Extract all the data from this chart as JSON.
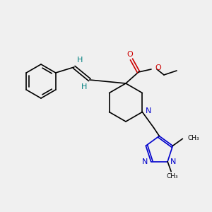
{
  "bg_color": "#f0f0f0",
  "bond_color": "#000000",
  "N_color": "#0000cc",
  "O_color": "#cc0000",
  "H_color": "#008080",
  "lw": 1.2,
  "fig_width": 3.0,
  "fig_height": 3.0,
  "dpi": 100,
  "xlim": [
    0,
    300
  ],
  "ylim": [
    0,
    300
  ]
}
